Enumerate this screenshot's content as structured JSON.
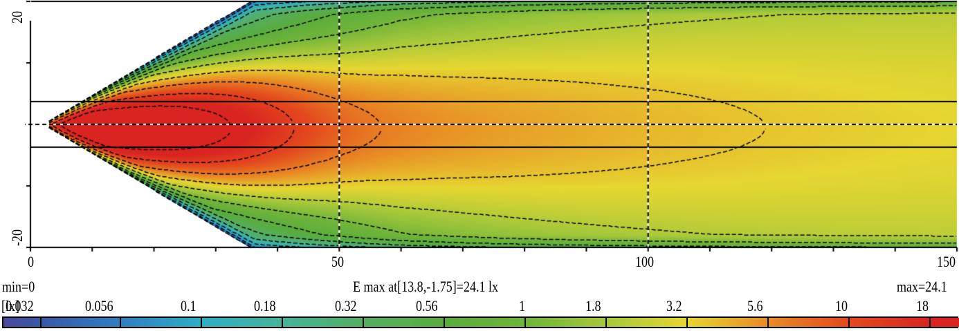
{
  "chart_data": {
    "type": "heatmap",
    "title": "E max at[13.8,-1.75]=24.1 lx",
    "xlabel": "",
    "ylabel": "",
    "xlim": [
      0,
      150
    ],
    "ylim": [
      -20,
      20
    ],
    "x_ticks": [
      0,
      50,
      100,
      150
    ],
    "x_minor_ticks": [
      10,
      20,
      30,
      40,
      60,
      70,
      80,
      90,
      110,
      120,
      130,
      140
    ],
    "y_ticks": [
      20,
      -20
    ],
    "grid_lines": {
      "x_dashed_white": [
        50,
        100
      ],
      "y_dashed_white": [
        0
      ],
      "y_solid": [
        3.7,
        -3.7
      ]
    },
    "min_label": "min=0",
    "max_label": "max=24.1",
    "max_value": 24.1,
    "max_location": [
      13.8,
      -1.75
    ],
    "unit": "lx",
    "colorbar": {
      "prefix": "[lx]",
      "levels": [
        0.032,
        0.056,
        0.1,
        0.18,
        0.32,
        0.56,
        1,
        1.8,
        3.2,
        5.6,
        10,
        18
      ],
      "level_labels": [
        "0.032",
        "0.056",
        "0.1",
        "0.18",
        "0.32",
        "0.56",
        "1",
        "1.8",
        "3.2",
        "5.6",
        "10",
        "18"
      ],
      "colors": [
        "#4a4a9a",
        "#3a58a6",
        "#2f7fc0",
        "#2eaec4",
        "#45b49a",
        "#54ae64",
        "#5aac3c",
        "#6fb43a",
        "#a6c83a",
        "#e6d631",
        "#e88b25",
        "#e4491e",
        "#d92421"
      ]
    }
  },
  "axes": {
    "x_tick_labels": [
      "0",
      "50",
      "100",
      "150"
    ],
    "y_tick_labels": [
      "20",
      "-20"
    ]
  },
  "footer": {
    "min": "min=0",
    "title": "E max at[13.8,-1.75]=24.1 lx",
    "max": "max=24.1",
    "unit_prefix": "[lx]"
  }
}
